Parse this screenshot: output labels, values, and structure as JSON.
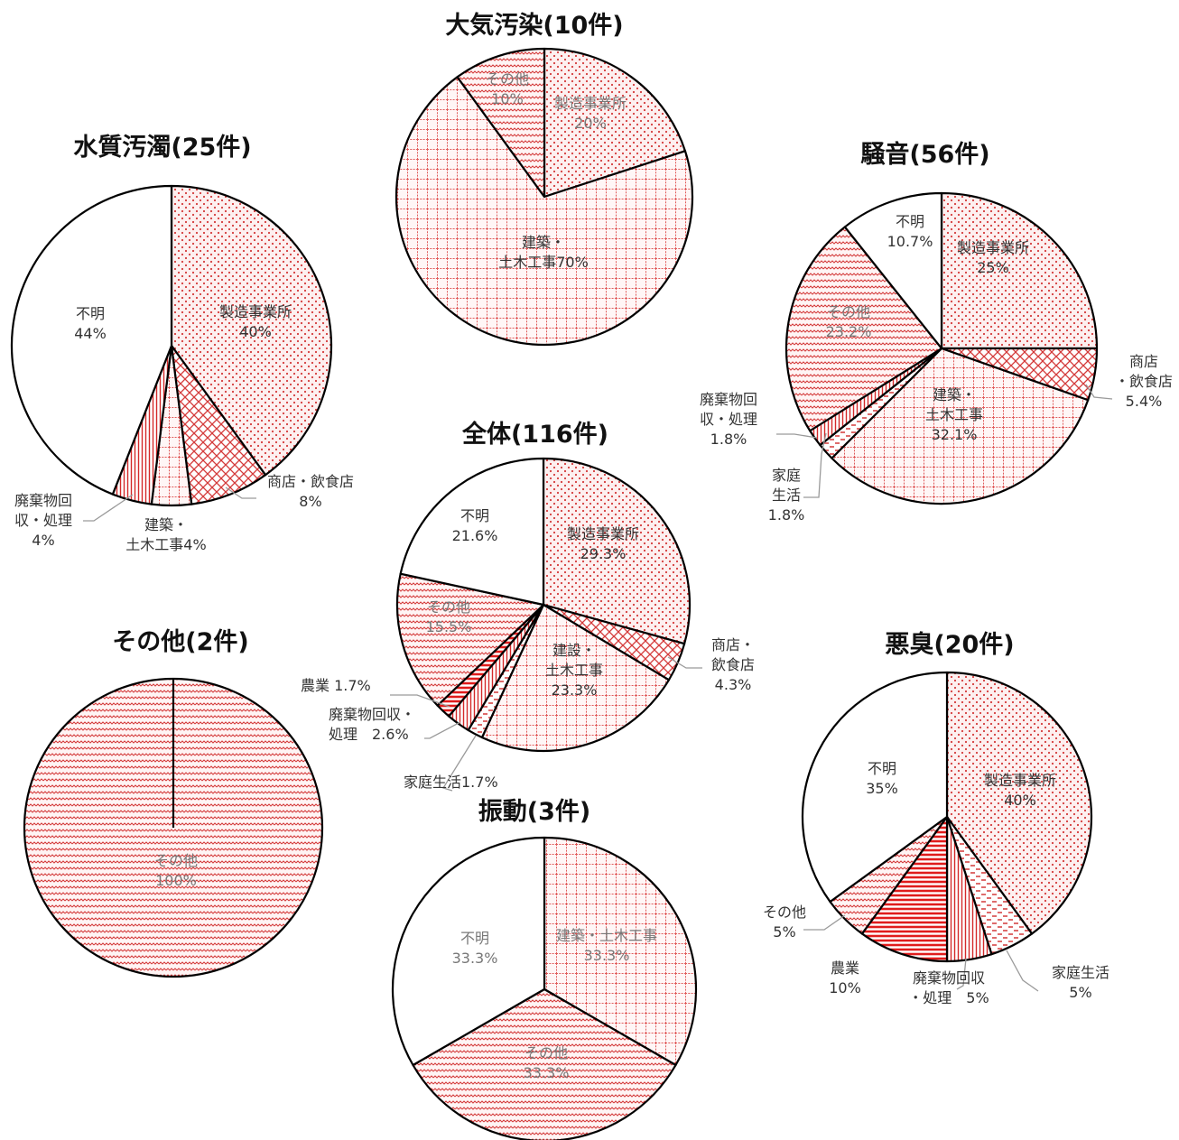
{
  "chart_data": [
    {
      "type": "pie",
      "title": "全体(116件)",
      "slices": [
        {
          "label": [
            "製造事業所",
            "29.3%"
          ],
          "value": 29.3,
          "pattern": "dots"
        },
        {
          "label": [
            "商店・",
            "飲食店",
            "4.3%"
          ],
          "value": 4.3,
          "pattern": "lattice"
        },
        {
          "label": [
            "建設・",
            "土木工事",
            "23.3%"
          ],
          "value": 23.3,
          "pattern": "grid"
        },
        {
          "label": [
            "家庭生活1.7%"
          ],
          "value": 1.7,
          "pattern": "dashes"
        },
        {
          "label": [
            "廃棄物回収・",
            "処理　2.6%"
          ],
          "value": 2.6,
          "pattern": "vlines"
        },
        {
          "label": [
            "農業 1.7%"
          ],
          "value": 1.7,
          "pattern": "hlines"
        },
        {
          "label": [
            "その他",
            "15.5%"
          ],
          "value": 15.5,
          "pattern": "waves"
        },
        {
          "label": [
            "不明",
            "21.6%"
          ],
          "value": 21.6,
          "pattern": "blank"
        }
      ]
    },
    {
      "type": "pie",
      "title": "大気汚染(10件)",
      "slices": [
        {
          "label": [
            "製造事業所",
            "20%"
          ],
          "value": 20,
          "pattern": "dots"
        },
        {
          "label": [
            "建築・",
            "土木工事70%"
          ],
          "value": 70,
          "pattern": "grid"
        },
        {
          "label": [
            "その他",
            "10%"
          ],
          "value": 10,
          "pattern": "waves"
        }
      ]
    },
    {
      "type": "pie",
      "title": "水質汚濁(25件)",
      "slices": [
        {
          "label": [
            "製造事業所",
            "40%"
          ],
          "value": 40,
          "pattern": "dots"
        },
        {
          "label": [
            "商店・飲食店",
            "8%"
          ],
          "value": 8,
          "pattern": "lattice"
        },
        {
          "label": [
            "建築・",
            "土木工事4%"
          ],
          "value": 4,
          "pattern": "grid"
        },
        {
          "label": [
            "廃棄物回",
            "収・処理",
            "4%"
          ],
          "value": 4,
          "pattern": "vlines"
        },
        {
          "label": [
            "不明",
            "44%"
          ],
          "value": 44,
          "pattern": "blank"
        }
      ]
    },
    {
      "type": "pie",
      "title": "騒音(56件)",
      "slices": [
        {
          "label": [
            "製造事業所",
            "25%"
          ],
          "value": 25,
          "pattern": "dots"
        },
        {
          "label": [
            "商店",
            "・飲食店",
            "5.4%"
          ],
          "value": 5.4,
          "pattern": "lattice"
        },
        {
          "label": [
            "建築・",
            "土木工事",
            "32.1%"
          ],
          "value": 32.1,
          "pattern": "grid"
        },
        {
          "label": [
            "家庭",
            "生活",
            "1.8%"
          ],
          "value": 1.8,
          "pattern": "dashes"
        },
        {
          "label": [
            "廃棄物回",
            "収・処理",
            "1.8%"
          ],
          "value": 1.8,
          "pattern": "vlines"
        },
        {
          "label": [
            "その他",
            "23.2%"
          ],
          "value": 23.2,
          "pattern": "waves"
        },
        {
          "label": [
            "不明",
            "10.7%"
          ],
          "value": 10.7,
          "pattern": "blank"
        }
      ]
    },
    {
      "type": "pie",
      "title": "その他(2件)",
      "slices": [
        {
          "label": [
            "その他",
            "100%"
          ],
          "value": 100,
          "pattern": "waves"
        }
      ]
    },
    {
      "type": "pie",
      "title": "振動(3件)",
      "slices": [
        {
          "label": [
            "建築・土木工事",
            "33.3%"
          ],
          "value": 33.3,
          "pattern": "grid"
        },
        {
          "label": [
            "その他",
            "33.3%"
          ],
          "value": 33.3,
          "pattern": "waves"
        },
        {
          "label": [
            "不明",
            "33.3%"
          ],
          "value": 33.3,
          "pattern": "blank"
        }
      ]
    },
    {
      "type": "pie",
      "title": "悪臭(20件)",
      "slices": [
        {
          "label": [
            "製造事業所",
            "40%"
          ],
          "value": 40,
          "pattern": "dots"
        },
        {
          "label": [
            "家庭生活",
            "5%"
          ],
          "value": 5,
          "pattern": "dashes"
        },
        {
          "label": [
            "廃棄物回収",
            "・処理　5%"
          ],
          "value": 5,
          "pattern": "vlines"
        },
        {
          "label": [
            "農業",
            "10%"
          ],
          "value": 10,
          "pattern": "hlines"
        },
        {
          "label": [
            "その他",
            "5%"
          ],
          "value": 5,
          "pattern": "waves"
        },
        {
          "label": [
            "不明",
            "35%"
          ],
          "value": 35,
          "pattern": "blank"
        }
      ]
    }
  ]
}
